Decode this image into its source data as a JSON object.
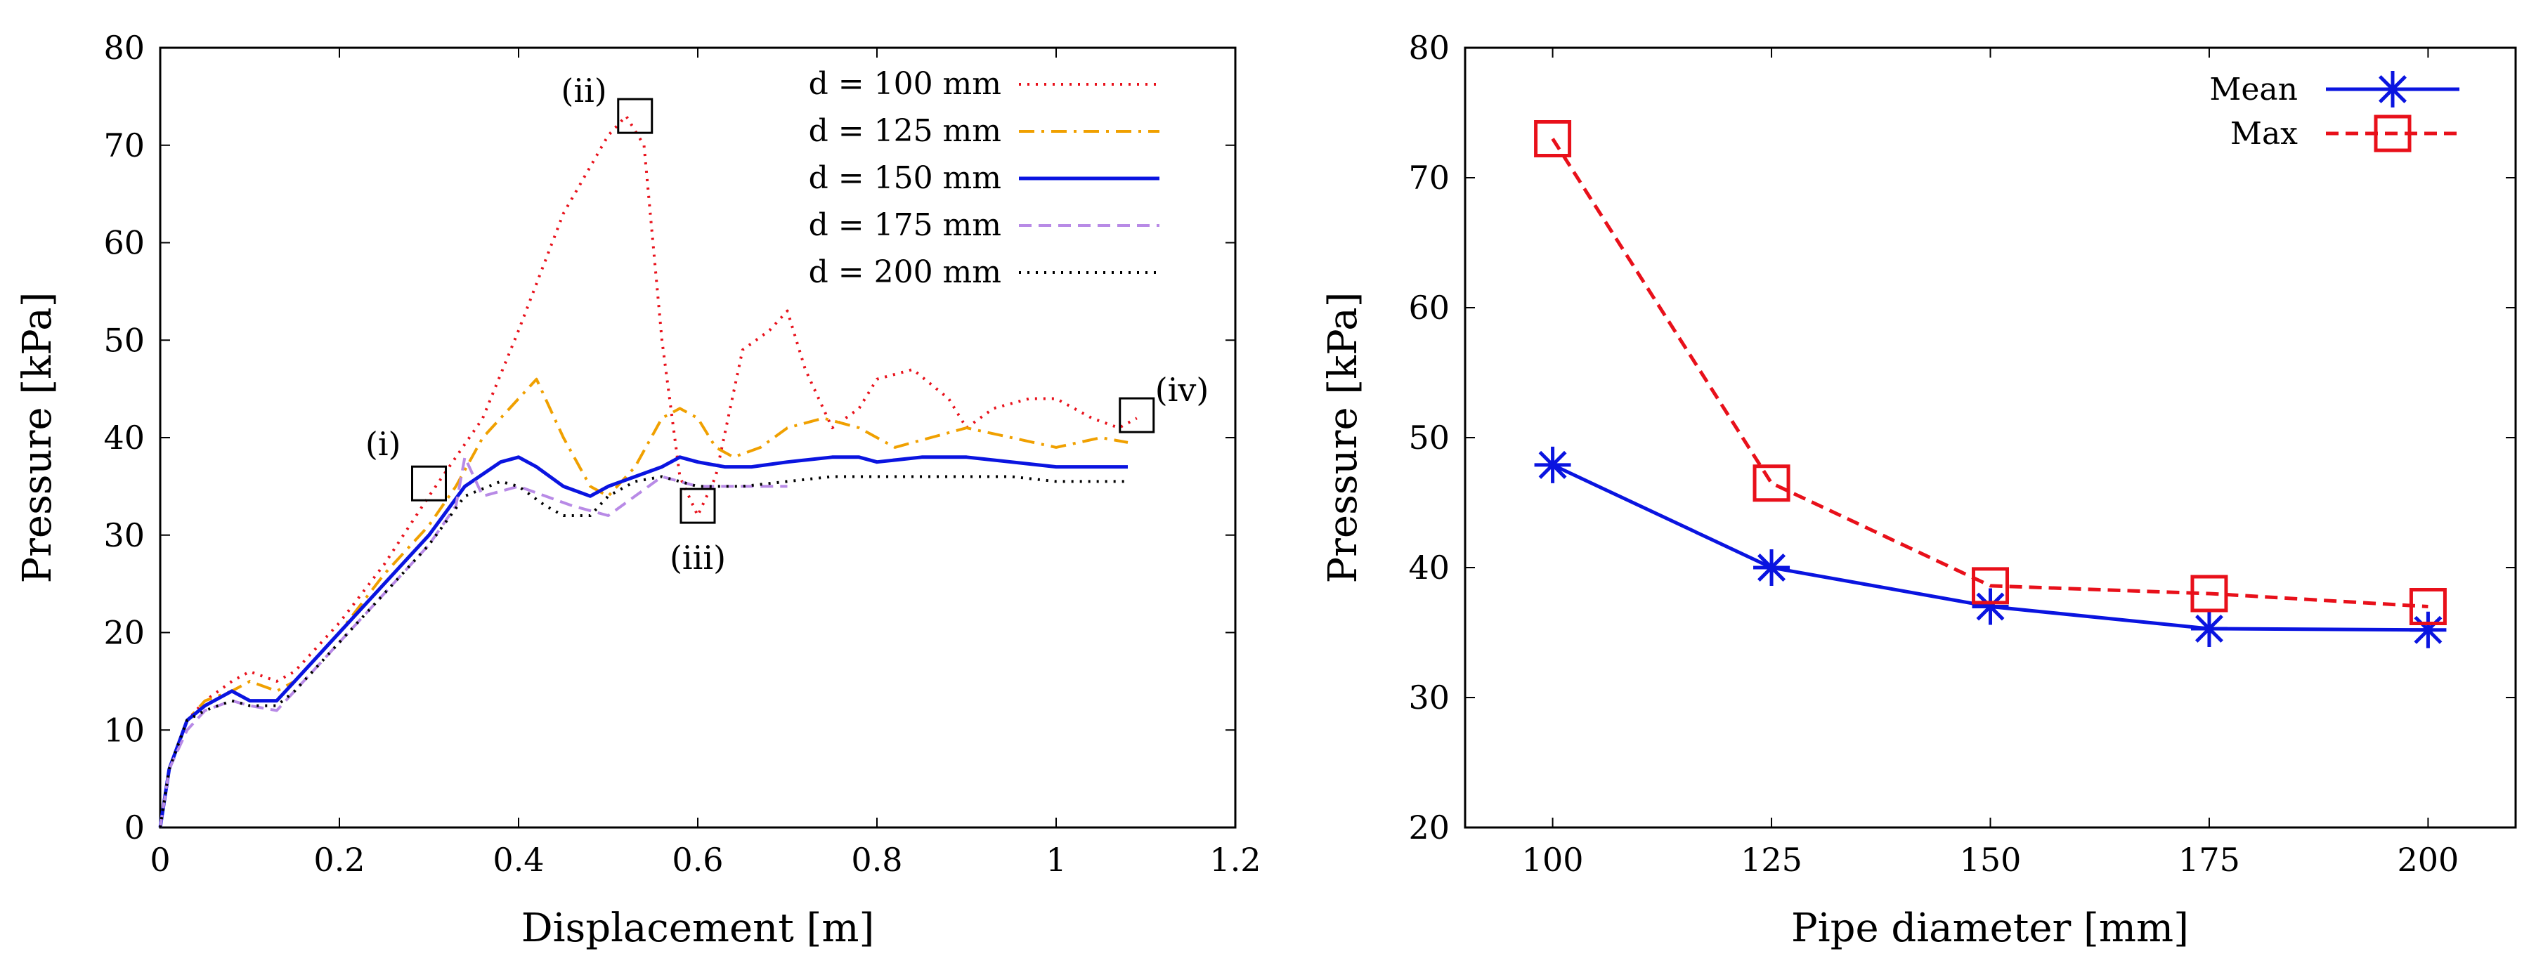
{
  "chart_data": [
    {
      "type": "line",
      "xlabel": "Displacement [m]",
      "ylabel": "Pressure [kPa]",
      "xlim": [
        0,
        1.2
      ],
      "ylim": [
        0,
        80
      ],
      "xticks": [
        "0",
        "0.2",
        "0.4",
        "0.6",
        "0.8",
        "1",
        "1.2"
      ],
      "yticks": [
        "0",
        "10",
        "20",
        "30",
        "40",
        "50",
        "60",
        "70",
        "80"
      ],
      "legend_position": "top-right",
      "series": [
        {
          "name": "d = 100 mm",
          "color": "#e8101a",
          "dash": "dotted",
          "x": [
            0,
            0.01,
            0.03,
            0.05,
            0.08,
            0.1,
            0.13,
            0.15,
            0.2,
            0.25,
            0.3,
            0.33,
            0.36,
            0.4,
            0.45,
            0.5,
            0.52,
            0.54,
            0.56,
            0.58,
            0.6,
            0.62,
            0.65,
            0.68,
            0.7,
            0.72,
            0.75,
            0.78,
            0.8,
            0.84,
            0.88,
            0.9,
            0.93,
            0.97,
            1.0,
            1.04,
            1.07,
            1.09
          ],
          "y": [
            0,
            6,
            11,
            13,
            15,
            16,
            15,
            16,
            21,
            27,
            34,
            38,
            42,
            51,
            63,
            71,
            73,
            70,
            50,
            36,
            32,
            36,
            49,
            51,
            53,
            47,
            41,
            43,
            46,
            47,
            44,
            41,
            43,
            44,
            44,
            42,
            41,
            42
          ]
        },
        {
          "name": "d = 125 mm",
          "color": "#f0a000",
          "dash": "dash-dot",
          "x": [
            0,
            0.01,
            0.03,
            0.05,
            0.08,
            0.1,
            0.13,
            0.15,
            0.2,
            0.25,
            0.3,
            0.33,
            0.36,
            0.4,
            0.42,
            0.45,
            0.48,
            0.5,
            0.53,
            0.56,
            0.58,
            0.6,
            0.62,
            0.64,
            0.67,
            0.7,
            0.74,
            0.78,
            0.82,
            0.86,
            0.9,
            0.95,
            1.0,
            1.05,
            1.08
          ],
          "y": [
            0,
            6,
            11,
            13,
            14,
            15,
            14,
            15,
            20,
            26,
            31,
            35,
            40,
            44,
            46,
            40,
            35,
            34,
            37,
            42,
            43,
            42,
            39,
            38,
            39,
            41,
            42,
            41,
            39,
            40,
            41,
            40,
            39,
            40,
            39.5
          ]
        },
        {
          "name": "d = 150 mm",
          "color": "#0a14e0",
          "dash": "solid",
          "x": [
            0,
            0.01,
            0.03,
            0.05,
            0.08,
            0.1,
            0.13,
            0.15,
            0.2,
            0.25,
            0.3,
            0.34,
            0.38,
            0.4,
            0.42,
            0.45,
            0.48,
            0.5,
            0.53,
            0.56,
            0.58,
            0.6,
            0.63,
            0.66,
            0.7,
            0.75,
            0.78,
            0.8,
            0.85,
            0.9,
            0.95,
            1.0,
            1.05,
            1.08
          ],
          "y": [
            0,
            6,
            11,
            12.5,
            14,
            13,
            13,
            15,
            20,
            25,
            30,
            35,
            37.5,
            38,
            37,
            35,
            34,
            35,
            36,
            37,
            38,
            37.5,
            37,
            37,
            37.5,
            38,
            38,
            37.5,
            38,
            38,
            37.5,
            37,
            37,
            37
          ]
        },
        {
          "name": "d = 175 mm",
          "color": "#b88ae6",
          "dash": "dashed",
          "x": [
            0,
            0.01,
            0.03,
            0.05,
            0.08,
            0.1,
            0.13,
            0.15,
            0.2,
            0.25,
            0.3,
            0.33,
            0.34,
            0.36,
            0.4,
            0.43,
            0.46,
            0.5,
            0.53,
            0.56,
            0.6,
            0.62,
            0.65,
            0.7
          ],
          "y": [
            0,
            6,
            10,
            12,
            13,
            12.5,
            12,
            14,
            19,
            24,
            29,
            33,
            38,
            34,
            35,
            34,
            33,
            32,
            34,
            36,
            35,
            35,
            35,
            35
          ]
        },
        {
          "name": "d = 200 mm",
          "color": "#000000",
          "dash": "dotted",
          "x": [
            0,
            0.01,
            0.03,
            0.05,
            0.08,
            0.1,
            0.13,
            0.15,
            0.2,
            0.25,
            0.3,
            0.34,
            0.38,
            0.4,
            0.43,
            0.45,
            0.48,
            0.5,
            0.53,
            0.56,
            0.6,
            0.65,
            0.7,
            0.75,
            0.8,
            0.85,
            0.9,
            0.95,
            1.0,
            1.05,
            1.08
          ],
          "y": [
            0,
            6,
            11,
            12,
            13,
            12.5,
            12.5,
            14,
            19,
            24,
            29,
            34,
            35.5,
            35,
            33,
            32,
            32,
            34,
            35.5,
            36,
            35,
            35,
            35.5,
            36,
            36,
            36,
            36,
            36,
            35.5,
            35.5,
            35.5
          ]
        }
      ],
      "annotations": [
        {
          "label": "(i)",
          "x": 0.3,
          "y": 35.3
        },
        {
          "label": "(ii)",
          "x": 0.53,
          "y": 73
        },
        {
          "label": "(iii)",
          "x": 0.6,
          "y": 33
        },
        {
          "label": "(iv)",
          "x": 1.09,
          "y": 42.3
        }
      ]
    },
    {
      "type": "line",
      "xlabel": "Pipe diameter [mm]",
      "ylabel": "Pressure [kPa]",
      "xlim": [
        90,
        210
      ],
      "ylim": [
        20,
        80
      ],
      "xticks": [
        "100",
        "125",
        "150",
        "175",
        "200"
      ],
      "yticks": [
        "20",
        "30",
        "40",
        "50",
        "60",
        "70",
        "80"
      ],
      "legend_position": "top-right",
      "x": [
        100,
        125,
        150,
        175,
        200
      ],
      "series": [
        {
          "name": "Mean",
          "color": "#0a14e0",
          "marker": "asterisk",
          "dash": "solid",
          "values": [
            47.9,
            40,
            37,
            35.3,
            35.2
          ]
        },
        {
          "name": "Max",
          "color": "#e8101a",
          "marker": "square",
          "dash": "dashed",
          "values": [
            73,
            46.5,
            38.6,
            38,
            37
          ]
        }
      ]
    }
  ]
}
